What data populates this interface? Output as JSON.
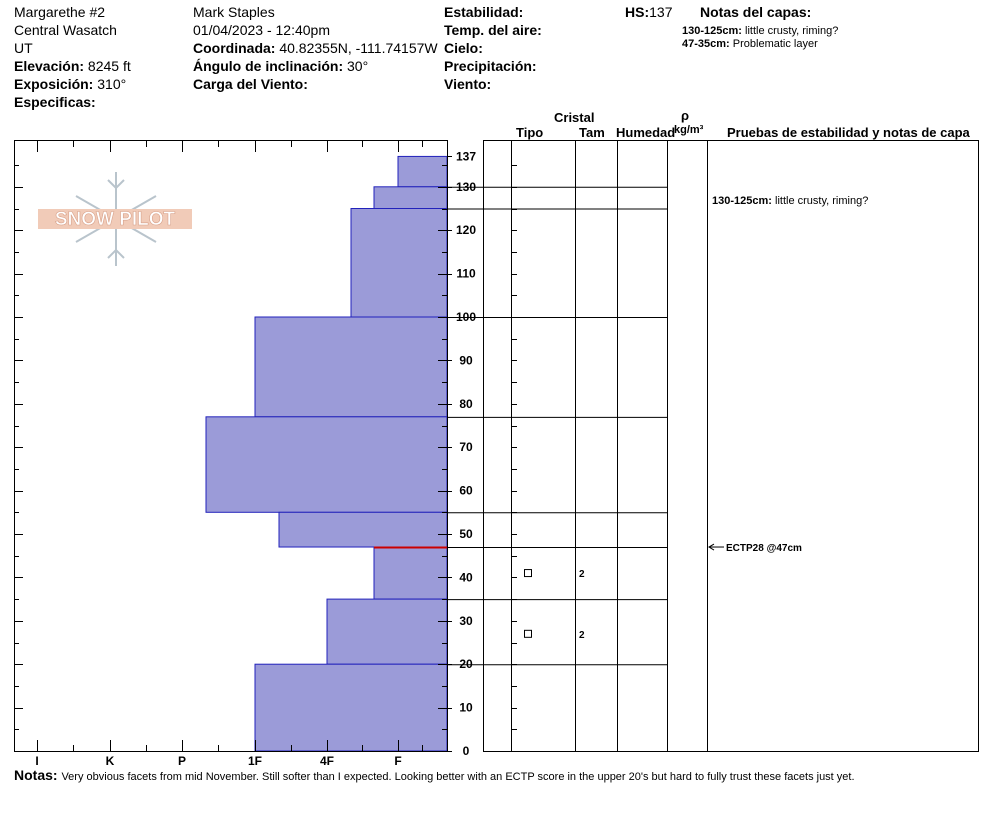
{
  "header": {
    "location": "Margarethe #2",
    "range": "Central Wasatch",
    "state": "UT",
    "elevation_label": "Elevación:",
    "elevation": "8245 ft",
    "aspect_label": "Exposición:",
    "aspect": "310°",
    "specifics_label": "Especificas:",
    "observer": "Mark Staples",
    "datetime": "01/04/2023 - 12:40pm",
    "coord_label": "Coordinada:",
    "coord": "40.82355N, -111.74157W",
    "slope_label": "Ángulo de inclinación:",
    "slope": "30°",
    "wind_load_label": "Carga del Viento:",
    "stability_label": "Estabilidad:",
    "air_temp_label": "Temp. del aire:",
    "sky_label": "Cielo:",
    "precip_label": "Precipitación:",
    "wind_label": "Viento:",
    "hs_label": "HS:",
    "hs": "137",
    "layer_notes_label": "Notas del capas:",
    "layer_notes": [
      {
        "range": "130-125cm:",
        "text": "little crusty, riming?"
      },
      {
        "range": "47-35cm:",
        "text": "Problematic layer"
      }
    ]
  },
  "logo_text": "SNOW PILOT",
  "columns": {
    "crystal": "Cristal",
    "type": "Tipo",
    "size": "Tam",
    "moisture": "Humedad",
    "rho": "ρ",
    "density_unit": "kg/m³",
    "tests": "Pruebas de estabilidad y notas de capa"
  },
  "chart_data": {
    "type": "bar",
    "orientation": "horizontal",
    "x_axis": "hardness",
    "y_axis": "height (cm)",
    "ylim": [
      0,
      137
    ],
    "hardness_ticks": [
      "I",
      "K",
      "P",
      "1F",
      "4F",
      "F"
    ],
    "height_ticks": [
      0,
      10,
      20,
      30,
      40,
      50,
      60,
      70,
      80,
      90,
      100,
      110,
      120,
      130,
      137
    ],
    "layers": [
      {
        "top": 137,
        "bottom": 130,
        "hardness": "F"
      },
      {
        "top": 130,
        "bottom": 125,
        "hardness": "F+"
      },
      {
        "top": 125,
        "bottom": 100,
        "hardness": "4F-"
      },
      {
        "top": 100,
        "bottom": 77,
        "hardness": "1F"
      },
      {
        "top": 77,
        "bottom": 55,
        "hardness": "P-"
      },
      {
        "top": 55,
        "bottom": 47,
        "hardness": "1F-"
      },
      {
        "top": 47,
        "bottom": 35,
        "hardness": "F+"
      },
      {
        "top": 35,
        "bottom": 20,
        "hardness": "4F"
      },
      {
        "top": 20,
        "bottom": 0,
        "hardness": "1F"
      }
    ],
    "crystal_rows": [
      {
        "height": 41,
        "size": "2"
      },
      {
        "height": 27,
        "size": "2"
      }
    ],
    "test_line_height": 47,
    "layer_note": {
      "height": 127,
      "range": "130-125cm:",
      "text": "little crusty, riming?"
    },
    "test_result": {
      "height": 47,
      "text": "ECTP28 @47cm"
    }
  },
  "notes": {
    "label": "Notas:",
    "text": "Very obvious facets from mid November. Still softer than I expected. Looking better with an ECTP score in the upper 20's but hard to fully trust these facets just yet."
  }
}
